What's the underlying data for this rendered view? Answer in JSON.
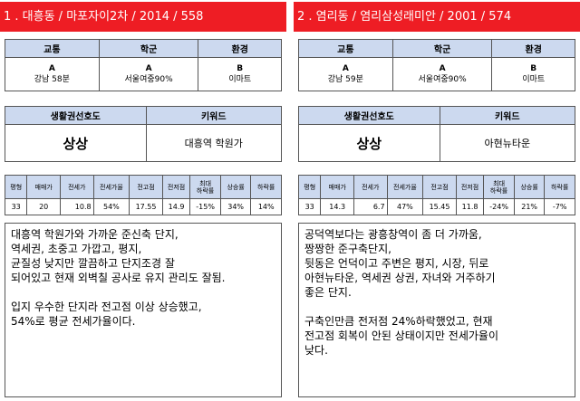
{
  "panels": [
    {
      "title": "1 . 대흥동 / 마포자이2차 / 2014 / 558",
      "headers": [
        "교통",
        "학군",
        "환경"
      ],
      "cells": [
        {
          "grade": "A",
          "text": "강남 58분"
        },
        {
          "grade": "A",
          "text": "서울여중90%"
        },
        {
          "grade": "B",
          "text": "이마트"
        }
      ],
      "life_header": "생활권선호도",
      "keyword_header": "키워드",
      "life_value": "상상",
      "keyword_value": "대흥역 학원가",
      "stat_headers": [
        "평형",
        "매매가",
        "전세가",
        "전세가율",
        "전고점",
        "전저점",
        "최대\n하락률",
        "상승률",
        "하락률"
      ],
      "stat_values": [
        "33",
        "20",
        "10.8",
        "54%",
        "17.55",
        "14.9",
        "-15%",
        "34%",
        "14%"
      ],
      "memo": "대흥역 학원가와 가까운 준신축 단지,\n역세권, 초중고 가깝고, 평지,\n균질성 낮지만 깔끔하고 단지조경 잘\n되어있고 현재 외벽칠 공사로 유지 관리도 잘됨.\n\n입지 우수한 단지라 전고점 이상 상승했고,\n54%로 평균 전세가율이다."
    },
    {
      "title": "2 . 염리동 / 염리삼성래미안 / 2001 / 574",
      "headers": [
        "교통",
        "학군",
        "환경"
      ],
      "cells": [
        {
          "grade": "A",
          "text": "강남 59분"
        },
        {
          "grade": "A",
          "text": "서울여중90%"
        },
        {
          "grade": "B",
          "text": "이마트"
        }
      ],
      "life_header": "생활권선호도",
      "keyword_header": "키워드",
      "life_value": "상상",
      "keyword_value": "아현뉴타운",
      "stat_headers": [
        "평형",
        "매매가",
        "전세가",
        "전세가율",
        "전고점",
        "전저점",
        "최대\n하락률",
        "상승률",
        "하락률"
      ],
      "stat_values": [
        "33",
        "14.3",
        "6.7",
        "47%",
        "15.45",
        "11.8",
        "-24%",
        "21%",
        "-7%"
      ],
      "memo": "공덕역보다는 광흥창역이 좀 더 가까움,\n짱짱한 준구축단지,\n뒷동은 언덕이고 주변은 평지, 시장, 뒤로\n아현뉴타운, 역세권 상권, 자녀와 거주하기\n좋은 단지.\n\n구축인만큼 전저점 24%하락했었고, 현재\n전고점 회복이 안된 상태이지만 전세가율이\n낮다."
    }
  ]
}
